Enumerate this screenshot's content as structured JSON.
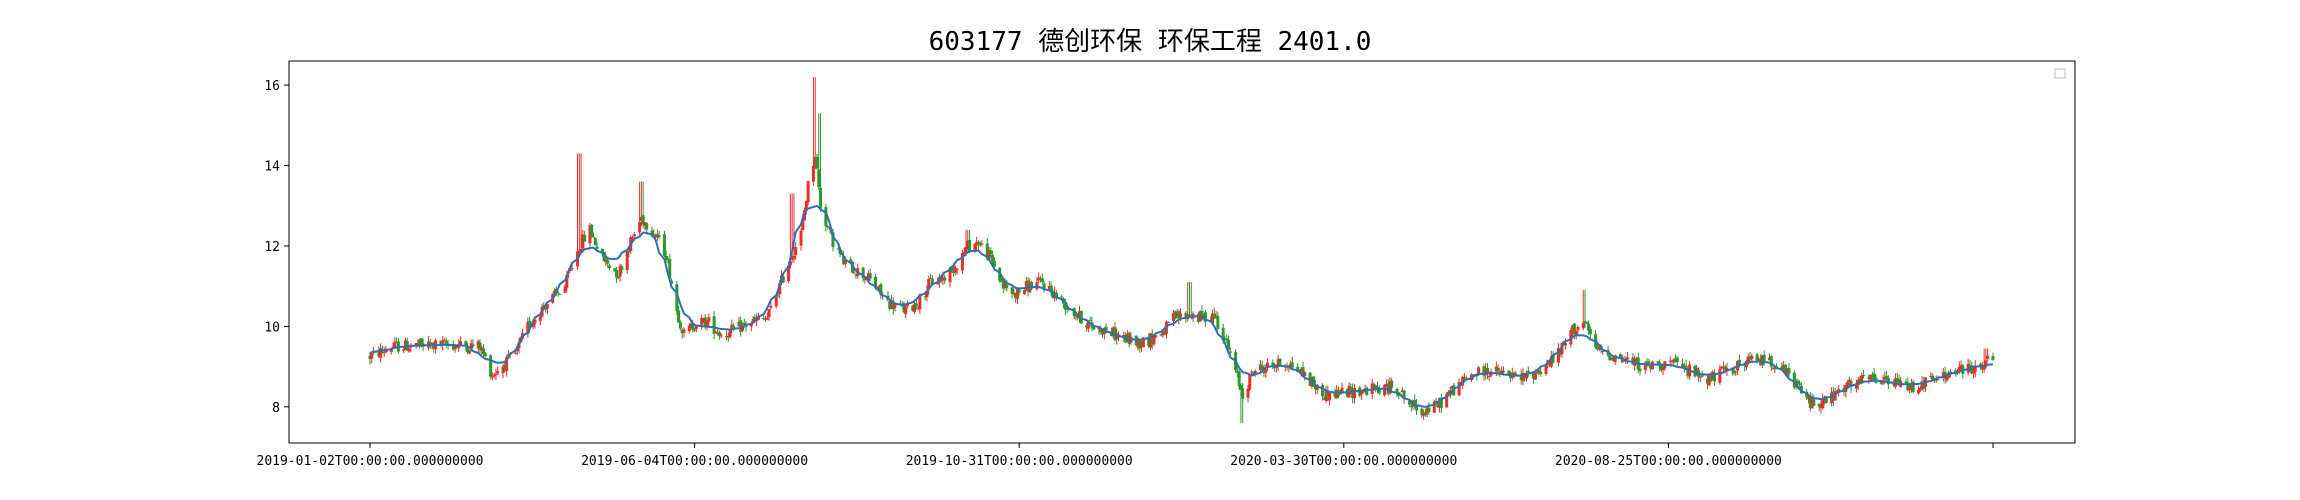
{
  "chart_data": {
    "type": "candlestick",
    "title": "603177 德创环保 环保工程 2401.0",
    "xlabel": "",
    "ylabel": "",
    "x_tick_labels": [
      "2019-01-02T00:00:00.000000000",
      "2019-06-04T00:00:00.000000000",
      "2019-10-31T00:00:00.000000000",
      "2020-03-30T00:00:00.000000000",
      "2020-08-25T00:00:00.000000000",
      ""
    ],
    "y_ticks": [
      8,
      10,
      12,
      14,
      16
    ],
    "ylim": [
      7.1,
      16.6
    ],
    "grid": false,
    "legend": "top-right (empty)",
    "colors": {
      "up": "#e8302a",
      "down": "#2a9a2a",
      "ma_line": "#2f6fb0"
    },
    "trend_points": [
      [
        "2019-01-02",
        9.25
      ],
      [
        "2019-01-15",
        9.5
      ],
      [
        "2019-02-15",
        9.55
      ],
      [
        "2019-03-05",
        9.5
      ],
      [
        "2019-03-12",
        8.8
      ],
      [
        "2019-03-25",
        9.3
      ],
      [
        "2019-04-01",
        10.0
      ],
      [
        "2019-04-10",
        10.5
      ],
      [
        "2019-04-22",
        11.0
      ],
      [
        "2019-04-30",
        12.0
      ],
      [
        "2019-05-06",
        12.4
      ],
      [
        "2019-05-13",
        11.7
      ],
      [
        "2019-05-22",
        11.3
      ],
      [
        "2019-05-28",
        12.0
      ],
      [
        "2019-06-04",
        12.7
      ],
      [
        "2019-06-12",
        12.3
      ],
      [
        "2019-06-18",
        11.8
      ],
      [
        "2019-06-24",
        10.4
      ],
      [
        "2019-06-28",
        9.8
      ],
      [
        "2019-07-05",
        10.1
      ],
      [
        "2019-07-12",
        10.1
      ],
      [
        "2019-07-19",
        9.8
      ],
      [
        "2019-07-26",
        9.9
      ],
      [
        "2019-08-05",
        10.1
      ],
      [
        "2019-08-14",
        10.2
      ],
      [
        "2019-08-21",
        11.0
      ],
      [
        "2019-08-28",
        11.8
      ],
      [
        "2019-09-02",
        12.3
      ],
      [
        "2019-09-06",
        13.5
      ],
      [
        "2019-09-10",
        14.3
      ],
      [
        "2019-09-13",
        13.0
      ],
      [
        "2019-09-19",
        12.2
      ],
      [
        "2019-09-26",
        11.6
      ],
      [
        "2019-10-10",
        11.2
      ],
      [
        "2019-10-21",
        10.6
      ],
      [
        "2019-10-31",
        10.4
      ],
      [
        "2019-11-07",
        10.6
      ],
      [
        "2019-11-14",
        11.1
      ],
      [
        "2019-11-21",
        11.2
      ],
      [
        "2019-11-28",
        11.5
      ],
      [
        "2019-12-05",
        12.0
      ],
      [
        "2019-12-11",
        12.1
      ],
      [
        "2019-12-18",
        11.7
      ],
      [
        "2019-12-25",
        11.0
      ],
      [
        "2019-12-31",
        10.8
      ],
      [
        "2020-01-08",
        11.0
      ],
      [
        "2020-01-16",
        11.1
      ],
      [
        "2020-01-23",
        10.8
      ],
      [
        "2020-02-04",
        10.3
      ],
      [
        "2020-02-13",
        10.0
      ],
      [
        "2020-02-21",
        9.9
      ],
      [
        "2020-03-02",
        9.7
      ],
      [
        "2020-03-11",
        9.6
      ],
      [
        "2020-03-18",
        9.7
      ],
      [
        "2020-03-25",
        9.9
      ],
      [
        "2020-03-30",
        10.2
      ],
      [
        "2020-04-08",
        10.3
      ],
      [
        "2020-04-16",
        10.2
      ],
      [
        "2020-04-22",
        10.3
      ],
      [
        "2020-04-28",
        9.7
      ],
      [
        "2020-05-08",
        8.3
      ],
      [
        "2020-05-14",
        8.9
      ],
      [
        "2020-05-22",
        9.0
      ],
      [
        "2020-06-02",
        9.1
      ],
      [
        "2020-06-12",
        8.8
      ],
      [
        "2020-06-22",
        8.3
      ],
      [
        "2020-07-02",
        8.35
      ],
      [
        "2020-07-14",
        8.4
      ],
      [
        "2020-07-24",
        8.45
      ],
      [
        "2020-08-03",
        8.5
      ],
      [
        "2020-08-10",
        8.05
      ],
      [
        "2020-08-18",
        7.9
      ],
      [
        "2020-08-25",
        8.0
      ],
      [
        "2020-09-03",
        8.4
      ],
      [
        "2020-09-14",
        8.8
      ],
      [
        "2020-09-24",
        8.9
      ],
      [
        "2020-10-12",
        8.7
      ],
      [
        "2020-10-22",
        8.9
      ],
      [
        "2020-11-02",
        9.3
      ],
      [
        "2020-11-10",
        9.9
      ],
      [
        "2020-11-16",
        10.1
      ],
      [
        "2020-11-24",
        9.4
      ],
      [
        "2020-12-07",
        9.2
      ],
      [
        "2020-12-21",
        9.0
      ],
      [
        "2021-01-04",
        9.1
      ],
      [
        "2021-01-15",
        8.9
      ],
      [
        "2021-01-26",
        8.7
      ],
      [
        "2021-02-05",
        8.9
      ],
      [
        "2021-02-22",
        9.2
      ],
      [
        "2021-03-05",
        9.1
      ],
      [
        "2021-03-15",
        8.6
      ],
      [
        "2021-03-24",
        8.1
      ],
      [
        "2021-04-02",
        8.15
      ],
      [
        "2021-04-14",
        8.5
      ],
      [
        "2021-04-26",
        8.7
      ],
      [
        "2021-05-10",
        8.6
      ],
      [
        "2021-05-20",
        8.5
      ],
      [
        "2021-06-01",
        8.65
      ],
      [
        "2021-06-15",
        8.9
      ],
      [
        "2021-06-25",
        8.95
      ],
      [
        "2021-07-05",
        9.2
      ]
    ],
    "candle_noise": 0.16,
    "wick_noise": 0.14,
    "spikes": [
      [
        "2019-04-30",
        14.3
      ],
      [
        "2019-06-04",
        13.6
      ],
      [
        "2019-08-28",
        13.3
      ],
      [
        "2019-09-09",
        16.2
      ],
      [
        "2019-09-13",
        15.3
      ],
      [
        "2019-12-05",
        12.4
      ],
      [
        "2020-04-08",
        11.1
      ],
      [
        "2020-05-08",
        7.6
      ],
      [
        "2020-11-16",
        10.9
      ],
      [
        "2021-07-01",
        9.45
      ]
    ]
  }
}
